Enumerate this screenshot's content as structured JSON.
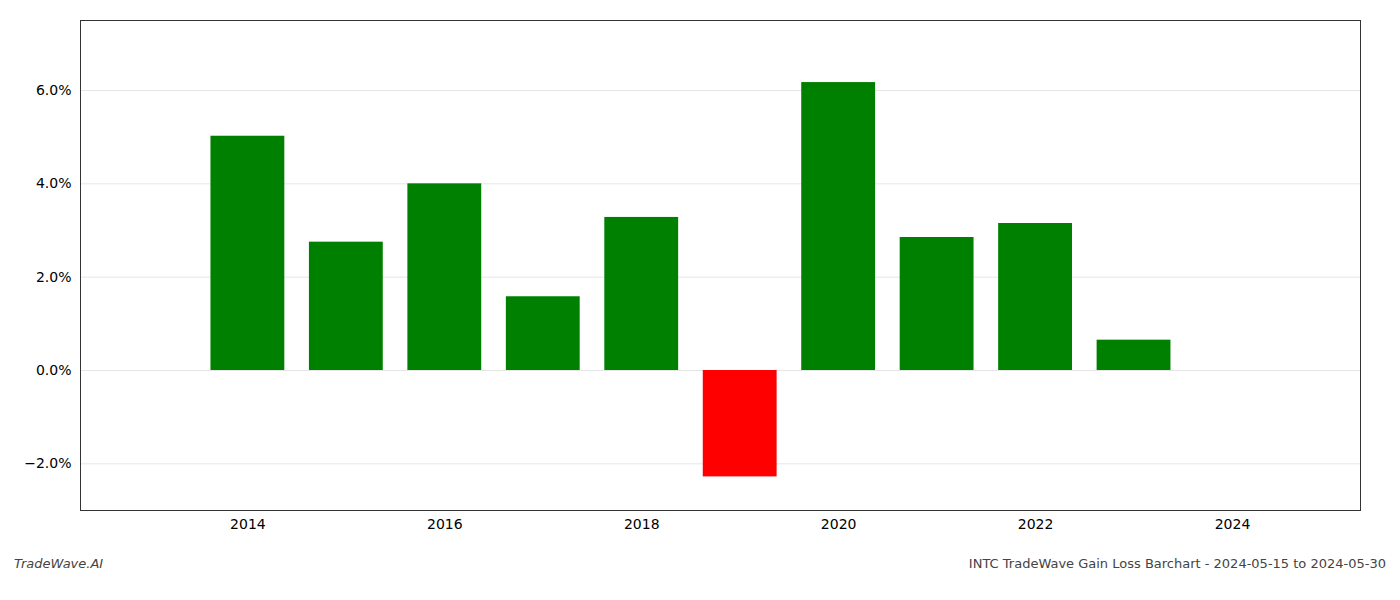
{
  "chart_data": {
    "type": "bar",
    "title": "INTC TradeWave Gain Loss Barchart - 2024-05-15 to 2024-05-30",
    "annotations": [
      "TradeWave.AI"
    ],
    "x": [
      2014,
      2015,
      2016,
      2017,
      2018,
      2019,
      2020,
      2021,
      2022,
      2023
    ],
    "values": [
      0.0502,
      0.0275,
      0.04,
      0.0158,
      0.0328,
      -0.0228,
      0.0617,
      0.0285,
      0.0315,
      0.0065
    ],
    "colors": [
      "#008000",
      "#008000",
      "#008000",
      "#008000",
      "#008000",
      "#ff0000",
      "#008000",
      "#008000",
      "#008000",
      "#008000"
    ],
    "xlim": [
      2012.3,
      2025.3
    ],
    "ylim": [
      -0.03,
      0.075
    ],
    "xticks": [
      2014,
      2016,
      2018,
      2020,
      2022,
      2024
    ],
    "yticks": [
      {
        "value": -0.02,
        "label": "−2.0%"
      },
      {
        "value": 0.0,
        "label": "0.0%"
      },
      {
        "value": 0.02,
        "label": "2.0%"
      },
      {
        "value": 0.04,
        "label": "4.0%"
      },
      {
        "value": 0.06,
        "label": "6.0%"
      }
    ],
    "grid": true
  }
}
